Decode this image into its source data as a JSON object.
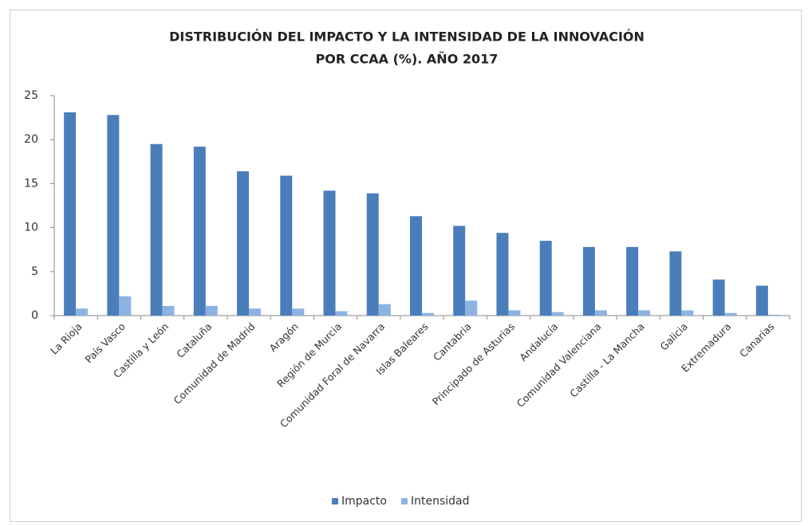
{
  "chart_data": {
    "type": "bar",
    "title": [
      "DISTRIBUCIÓN DEL IMPACTO Y LA INTENSIDAD DE LA INNOVACIÓN",
      "POR CCAA (%). AÑO 2017"
    ],
    "categories": [
      "La Rioja",
      "País Vasco",
      "Castilla y León",
      "Cataluña",
      "Comunidad de Madrid",
      "Aragón",
      "Región de Murcia",
      "Comunidad Foral de Navarra",
      "Islas Baleares",
      "Cantabria",
      "Principado de Asturias",
      "Andalucía",
      "Comunidad Valenciana",
      "Castilla - La Mancha",
      "Galicia",
      "Extremadura",
      "Canarias"
    ],
    "series": [
      {
        "name": "Impacto",
        "color": "#4a7ebb",
        "values": [
          23.1,
          22.8,
          19.5,
          19.2,
          16.4,
          15.9,
          14.2,
          13.9,
          11.3,
          10.2,
          9.4,
          8.5,
          7.8,
          7.8,
          7.3,
          4.1,
          3.4
        ]
      },
      {
        "name": "Intensidad",
        "color": "#8db3e2",
        "values": [
          0.8,
          2.2,
          1.1,
          1.1,
          0.8,
          0.8,
          0.5,
          1.3,
          0.3,
          1.7,
          0.6,
          0.4,
          0.6,
          0.6,
          0.6,
          0.3,
          0.1
        ]
      }
    ],
    "ylim": [
      0,
      25
    ],
    "yticks": [
      0,
      5,
      10,
      15,
      20,
      25
    ],
    "grid": false,
    "legend": "bottom"
  }
}
